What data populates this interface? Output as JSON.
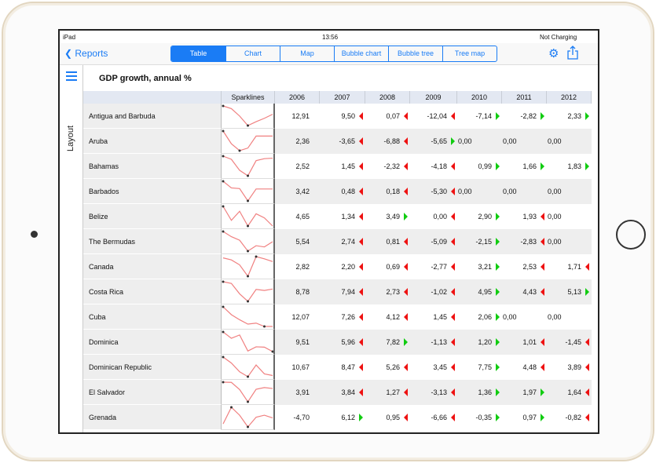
{
  "status": {
    "device": "iPad",
    "time": "13:56",
    "battery": "Not Charging"
  },
  "nav": {
    "back": "Reports",
    "tabs": [
      "Table",
      "Chart",
      "Map",
      "Bubble chart",
      "Bubble tree",
      "Tree map"
    ],
    "active": 0
  },
  "side": {
    "layout": "Layout"
  },
  "report": {
    "title": "GDP growth, annual %",
    "sparkline_header": "Sparklines",
    "years": [
      "2006",
      "2007",
      "2008",
      "2009",
      "2010",
      "2011",
      "2012"
    ]
  },
  "colors": {
    "accent": "#1a7cf5",
    "down": "#e11111",
    "up": "#11cc11",
    "spark": "#f08080"
  },
  "rows": [
    {
      "country": "Antigua and Barbuda",
      "values": [
        "12,91",
        "9,50",
        "0,07",
        "-12,04",
        "-7,14",
        "-2,82",
        "2,33"
      ],
      "trend": [
        "",
        "down",
        "down",
        "down",
        "up",
        "up",
        "up"
      ]
    },
    {
      "country": "Aruba",
      "values": [
        "2,36",
        "-3,65",
        "-6,88",
        "-5,65",
        "0,00",
        "0,00",
        "0,00"
      ],
      "trend": [
        "",
        "down",
        "down",
        "up",
        "",
        "",
        ""
      ]
    },
    {
      "country": "Bahamas",
      "values": [
        "2,52",
        "1,45",
        "-2,32",
        "-4,18",
        "0,99",
        "1,66",
        "1,83"
      ],
      "trend": [
        "",
        "down",
        "down",
        "down",
        "up",
        "up",
        "up"
      ]
    },
    {
      "country": "Barbados",
      "values": [
        "3,42",
        "0,48",
        "0,18",
        "-5,30",
        "0,00",
        "0,00",
        "0,00"
      ],
      "trend": [
        "",
        "down",
        "down",
        "down",
        "",
        "",
        ""
      ]
    },
    {
      "country": "Belize",
      "values": [
        "4,65",
        "1,34",
        "3,49",
        "0,00",
        "2,90",
        "1,93",
        "0,00"
      ],
      "trend": [
        "",
        "down",
        "up",
        "down",
        "up",
        "down",
        ""
      ]
    },
    {
      "country": "The Bermudas",
      "values": [
        "5,54",
        "2,74",
        "0,81",
        "-5,09",
        "-2,15",
        "-2,83",
        "0,00"
      ],
      "trend": [
        "",
        "down",
        "down",
        "down",
        "up",
        "down",
        ""
      ]
    },
    {
      "country": "Canada",
      "values": [
        "2,82",
        "2,20",
        "0,69",
        "-2,77",
        "3,21",
        "2,53",
        "1,71"
      ],
      "trend": [
        "",
        "down",
        "down",
        "down",
        "up",
        "down",
        "down"
      ]
    },
    {
      "country": "Costa Rica",
      "values": [
        "8,78",
        "7,94",
        "2,73",
        "-1,02",
        "4,95",
        "4,43",
        "5,13"
      ],
      "trend": [
        "",
        "down",
        "down",
        "down",
        "up",
        "down",
        "up"
      ]
    },
    {
      "country": "Cuba",
      "values": [
        "12,07",
        "7,26",
        "4,12",
        "1,45",
        "2,06",
        "0,00",
        "0,00"
      ],
      "trend": [
        "",
        "down",
        "down",
        "down",
        "up",
        "",
        ""
      ]
    },
    {
      "country": "Dominica",
      "values": [
        "9,51",
        "5,96",
        "7,82",
        "-1,13",
        "1,20",
        "1,01",
        "-1,45"
      ],
      "trend": [
        "",
        "down",
        "up",
        "down",
        "up",
        "down",
        "down"
      ]
    },
    {
      "country": "Dominican Republic",
      "values": [
        "10,67",
        "8,47",
        "5,26",
        "3,45",
        "7,75",
        "4,48",
        "3,89"
      ],
      "trend": [
        "",
        "down",
        "down",
        "down",
        "up",
        "down",
        "down"
      ]
    },
    {
      "country": "El Salvador",
      "values": [
        "3,91",
        "3,84",
        "1,27",
        "-3,13",
        "1,36",
        "1,97",
        "1,64"
      ],
      "trend": [
        "",
        "down",
        "down",
        "down",
        "up",
        "up",
        "down"
      ]
    },
    {
      "country": "Grenada",
      "values": [
        "-4,70",
        "6,12",
        "0,95",
        "-6,66",
        "-0,35",
        "0,97",
        "-0,82"
      ],
      "trend": [
        "",
        "up",
        "down",
        "down",
        "up",
        "up",
        "down"
      ]
    }
  ]
}
